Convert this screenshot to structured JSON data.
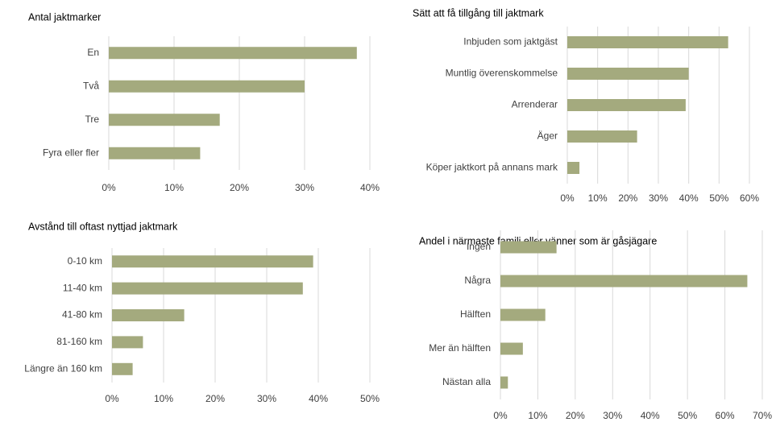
{
  "chart_data": [
    {
      "type": "bar",
      "orientation": "horizontal",
      "title": "Antal jaktmarker",
      "categories": [
        "En",
        "Två",
        "Tre",
        "Fyra eller fler"
      ],
      "values": [
        38,
        30,
        17,
        14
      ],
      "color": "#a4aa7e",
      "xlim": [
        0,
        40
      ],
      "xticks": [
        {
          "value": 0,
          "label": "0%"
        },
        {
          "value": 10,
          "label": "10%"
        },
        {
          "value": 20,
          "label": "20%"
        },
        {
          "value": 30,
          "label": "30%"
        },
        {
          "value": 40,
          "label": "40%"
        }
      ],
      "grid": true
    },
    {
      "type": "bar",
      "orientation": "horizontal",
      "title": "Sätt att få tillgång till jaktmark",
      "categories": [
        "Inbjuden som jaktgäst",
        "Muntlig överenskommelse",
        "Arrenderar",
        "Äger",
        "Köper jaktkort på annans mark"
      ],
      "values": [
        53,
        40,
        39,
        23,
        4
      ],
      "color": "#a4aa7e",
      "xlim": [
        0,
        60
      ],
      "xticks": [
        {
          "value": 0,
          "label": "0%"
        },
        {
          "value": 10,
          "label": "10%"
        },
        {
          "value": 20,
          "label": "20%"
        },
        {
          "value": 30,
          "label": "30%"
        },
        {
          "value": 40,
          "label": "40%"
        },
        {
          "value": 50,
          "label": "50%"
        },
        {
          "value": 60,
          "label": "60%"
        }
      ],
      "grid": true
    },
    {
      "type": "bar",
      "orientation": "horizontal",
      "title": "Avstånd till oftast nyttjad jaktmark",
      "categories": [
        "0-10 km",
        "11-40 km",
        "41-80 km",
        "81-160 km",
        "Längre än 160 km"
      ],
      "values": [
        39,
        37,
        14,
        6,
        4
      ],
      "color": "#a4aa7e",
      "xlim": [
        0,
        50
      ],
      "xticks": [
        {
          "value": 0,
          "label": "0%"
        },
        {
          "value": 10,
          "label": "10%"
        },
        {
          "value": 20,
          "label": "20%"
        },
        {
          "value": 30,
          "label": "30%"
        },
        {
          "value": 40,
          "label": "40%"
        },
        {
          "value": 50,
          "label": "50%"
        }
      ],
      "grid": true
    },
    {
      "type": "bar",
      "orientation": "horizontal",
      "title": "Andel i närmaste familj eller vänner som är gåsjägare",
      "categories": [
        "Ingen",
        "Några",
        "Hälften",
        "Mer än hälften",
        "Nästan alla"
      ],
      "values": [
        15,
        66,
        12,
        6,
        2
      ],
      "color": "#a4aa7e",
      "xlim": [
        0,
        70
      ],
      "xticks": [
        {
          "value": 0,
          "label": "0%"
        },
        {
          "value": 10,
          "label": "10%"
        },
        {
          "value": 20,
          "label": "20%"
        },
        {
          "value": 30,
          "label": "30%"
        },
        {
          "value": 40,
          "label": "40%"
        },
        {
          "value": 50,
          "label": "50%"
        },
        {
          "value": 60,
          "label": "60%"
        },
        {
          "value": 70,
          "label": "70%"
        }
      ],
      "grid": true
    }
  ]
}
